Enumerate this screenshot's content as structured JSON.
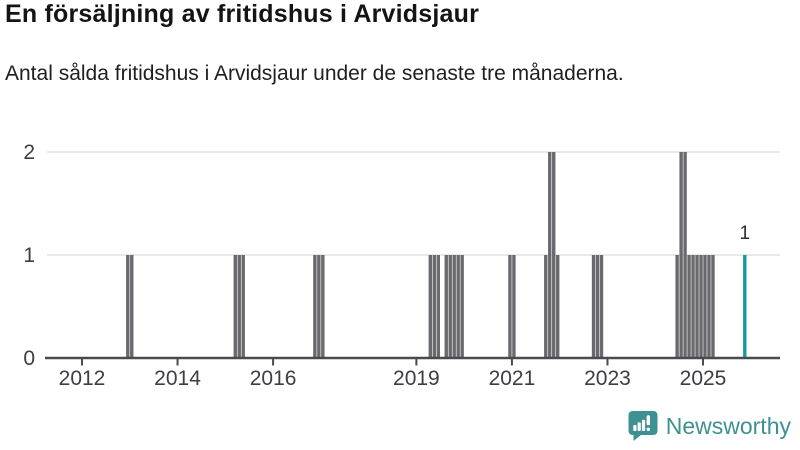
{
  "header": {
    "title": "En försäljning av fritidshus i Arvidsjaur",
    "subtitle": "Antal sålda fritidshus i Arvidsjaur under de senaste tre månaderna."
  },
  "chart_data": {
    "type": "bar",
    "title": "En försäljning av fritidshus i Arvidsjaur",
    "subtitle": "Antal sålda fritidshus i Arvidsjaur under de senaste tre månaderna.",
    "x_type": "time-month",
    "ylim": [
      0,
      2
    ],
    "yticks": [
      0,
      1,
      2
    ],
    "xticks": [
      "2012",
      "2014",
      "2016",
      "2019",
      "2021",
      "2023",
      "2025"
    ],
    "grid": "horizontal",
    "legend": "none",
    "bar_color": "#6a6a6e",
    "highlight_color": "#18999e",
    "bars": [
      {
        "month": "2012-12",
        "value": 1
      },
      {
        "month": "2013-01",
        "value": 1
      },
      {
        "month": "2015-03",
        "value": 1
      },
      {
        "month": "2015-04",
        "value": 1
      },
      {
        "month": "2015-05",
        "value": 1
      },
      {
        "month": "2016-11",
        "value": 1
      },
      {
        "month": "2016-12",
        "value": 1
      },
      {
        "month": "2017-01",
        "value": 1
      },
      {
        "month": "2019-04",
        "value": 1
      },
      {
        "month": "2019-05",
        "value": 1
      },
      {
        "month": "2019-06",
        "value": 1
      },
      {
        "month": "2019-08",
        "value": 1
      },
      {
        "month": "2019-09",
        "value": 1
      },
      {
        "month": "2019-10",
        "value": 1
      },
      {
        "month": "2019-11",
        "value": 1
      },
      {
        "month": "2019-12",
        "value": 1
      },
      {
        "month": "2020-12",
        "value": 1
      },
      {
        "month": "2021-01",
        "value": 1
      },
      {
        "month": "2021-09",
        "value": 1
      },
      {
        "month": "2021-10",
        "value": 2
      },
      {
        "month": "2021-11",
        "value": 2
      },
      {
        "month": "2021-12",
        "value": 1
      },
      {
        "month": "2022-09",
        "value": 1
      },
      {
        "month": "2022-10",
        "value": 1
      },
      {
        "month": "2022-11",
        "value": 1
      },
      {
        "month": "2024-06",
        "value": 1
      },
      {
        "month": "2024-07",
        "value": 2
      },
      {
        "month": "2024-08",
        "value": 2
      },
      {
        "month": "2024-09",
        "value": 1
      },
      {
        "month": "2024-10",
        "value": 1
      },
      {
        "month": "2024-11",
        "value": 1
      },
      {
        "month": "2024-12",
        "value": 1
      },
      {
        "month": "2025-01",
        "value": 1
      },
      {
        "month": "2025-02",
        "value": 1
      },
      {
        "month": "2025-03",
        "value": 1
      }
    ],
    "highlight_bar": {
      "month": "2025-11",
      "value": 1,
      "label": "1"
    }
  },
  "logo": {
    "text": "Newsworthy",
    "color": "#3e9191",
    "icon": "newsworthy-bar-chart-bubble-icon"
  }
}
